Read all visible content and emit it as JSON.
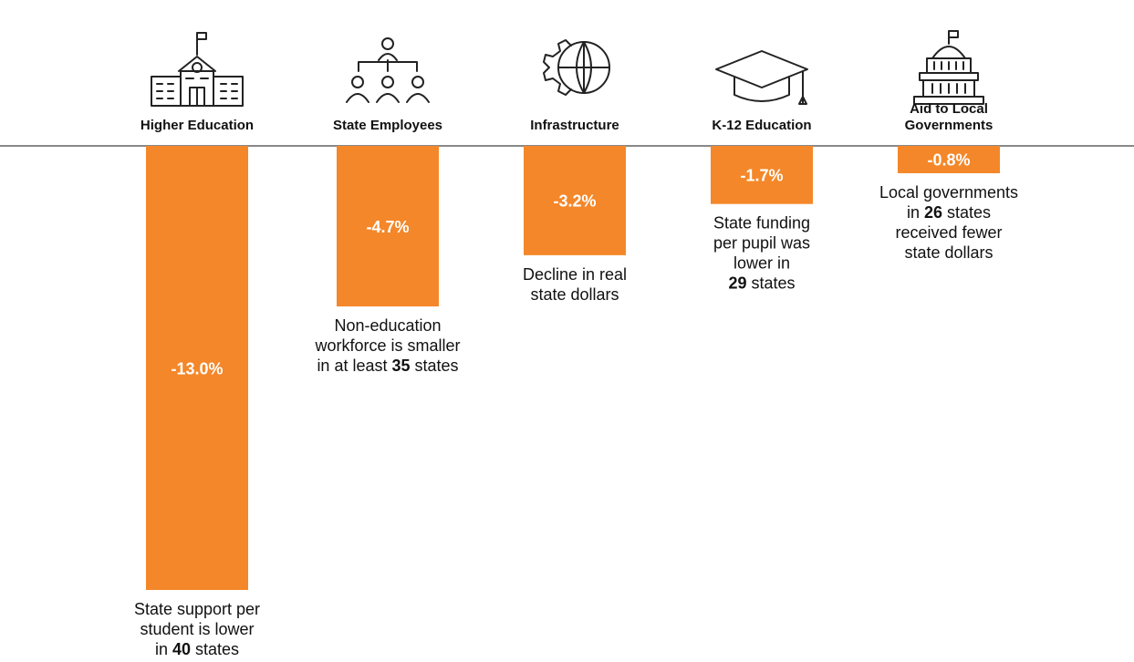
{
  "chart_data": {
    "type": "bar",
    "categories": [
      "Higher Education",
      "State Employees",
      "Infrastructure",
      "K-12 Education",
      "Aid to Local Governments"
    ],
    "values": [
      -13.0,
      -4.7,
      -3.2,
      -1.7,
      -0.8
    ],
    "value_labels": [
      "-13.0%",
      "-4.7%",
      "-3.2%",
      "-1.7%",
      "-0.8%"
    ],
    "color": "#f48729",
    "annotations": [
      {
        "lines": [
          [
            {
              "text": "State support per"
            }
          ],
          [
            {
              "text": "student is lower"
            }
          ],
          [
            {
              "text": "in "
            },
            {
              "text": "40",
              "bold": true
            },
            {
              "text": " states"
            }
          ]
        ]
      },
      {
        "lines": [
          [
            {
              "text": "Non-education"
            }
          ],
          [
            {
              "text": "workforce is smaller"
            }
          ],
          [
            {
              "text": "in at least "
            },
            {
              "text": "35",
              "bold": true
            },
            {
              "text": " states"
            }
          ]
        ]
      },
      {
        "lines": [
          [
            {
              "text": "Decline in real"
            }
          ],
          [
            {
              "text": "state dollars"
            }
          ]
        ]
      },
      {
        "lines": [
          [
            {
              "text": "State funding"
            }
          ],
          [
            {
              "text": "per pupil was"
            }
          ],
          [
            {
              "text": "lower in"
            }
          ],
          [
            {
              "text": "29",
              "bold": true
            },
            {
              "text": " states"
            }
          ]
        ]
      },
      {
        "lines": [
          [
            {
              "text": "Local governments"
            }
          ],
          [
            {
              "text": "in "
            },
            {
              "text": "26",
              "bold": true
            },
            {
              "text": " states"
            }
          ],
          [
            {
              "text": "received fewer"
            }
          ],
          [
            {
              "text": "state dollars"
            }
          ]
        ]
      }
    ]
  }
}
